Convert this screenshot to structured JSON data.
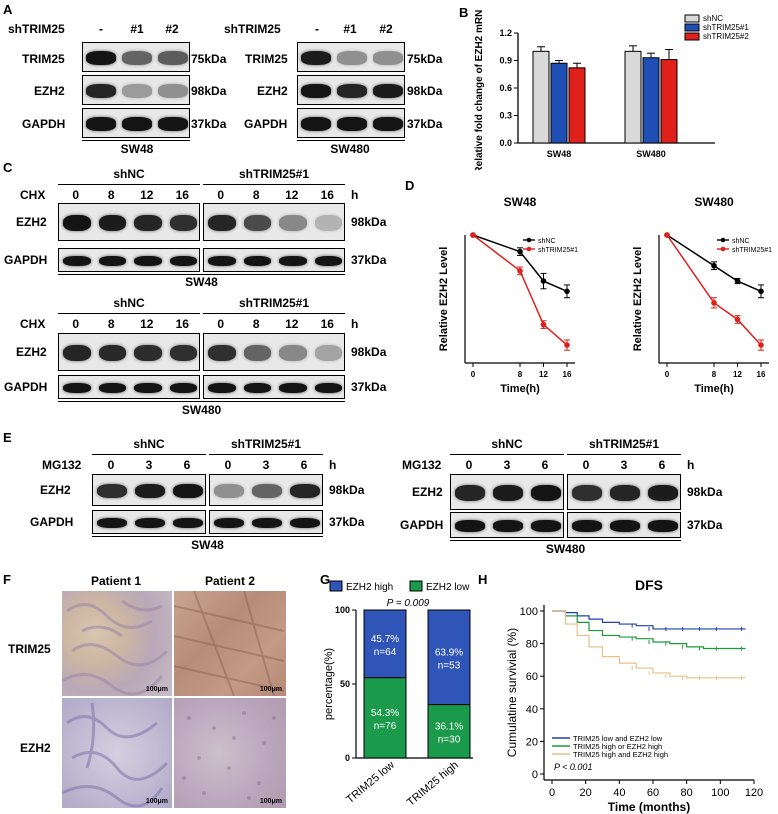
{
  "panels": [
    "A",
    "B",
    "C",
    "D",
    "E",
    "F",
    "G",
    "H"
  ],
  "A": {
    "header_label": "shTRIM25",
    "lanes": [
      "-",
      "#1",
      "#2"
    ],
    "rows": [
      {
        "protein": "TRIM25",
        "size": "75kDa"
      },
      {
        "protein": "EZH2",
        "size": "98kDa"
      },
      {
        "protein": "GAPDH",
        "size": "37kDa"
      }
    ],
    "cells": [
      "SW48",
      "SW480"
    ],
    "band_intensity": {
      "SW48": {
        "TRIM25": [
          1.0,
          0.55,
          0.6
        ],
        "EZH2": [
          0.9,
          0.25,
          0.3
        ],
        "GAPDH": [
          1.0,
          1.0,
          1.0
        ]
      },
      "SW480": {
        "TRIM25": [
          0.95,
          0.3,
          0.3
        ],
        "EZH2": [
          1.0,
          0.9,
          0.95
        ],
        "GAPDH": [
          1.0,
          1.0,
          1.0
        ]
      }
    }
  },
  "B": {
    "chart_data": {
      "type": "bar",
      "ylabel": "Relative fold change of EZH2 mRNA",
      "categories": [
        "SW48",
        "SW480"
      ],
      "ylim": [
        0,
        1.2
      ],
      "yticks": [
        "0.0",
        "0.3",
        "0.6",
        "0.9",
        "1.2"
      ],
      "series": [
        {
          "name": "shNC",
          "values": [
            1.0,
            1.0
          ],
          "errors": [
            0.05,
            0.06
          ],
          "color": "#d9d9d9"
        },
        {
          "name": "shTRIM25#1",
          "values": [
            0.87,
            0.93
          ],
          "errors": [
            0.03,
            0.05
          ],
          "color": "#1f4fb4"
        },
        {
          "name": "shTRIM25#2",
          "values": [
            0.82,
            0.91
          ],
          "errors": [
            0.05,
            0.11
          ],
          "color": "#e0201b"
        }
      ]
    }
  },
  "C": {
    "groups": [
      "shNC",
      "shTRIM25#1"
    ],
    "treatment": "CHX",
    "timepoints": [
      "0",
      "8",
      "12",
      "16"
    ],
    "unit": "h",
    "rows": [
      {
        "protein": "EZH2",
        "size": "98kDa"
      },
      {
        "protein": "GAPDH",
        "size": "37kDa"
      }
    ],
    "cells": [
      "SW48",
      "SW480"
    ]
  },
  "D": {
    "chart_data": [
      {
        "type": "line",
        "title": "SW48",
        "xlabel": "Time(h)",
        "ylabel": "Relative EZH2 Level",
        "x": [
          0,
          8,
          12,
          16
        ],
        "xticks": [
          "0",
          "8",
          "12",
          "16"
        ],
        "ylim": [
          0,
          1.0
        ],
        "series": [
          {
            "name": "shNC",
            "values": [
              1.0,
              0.87,
              0.64,
              0.56
            ],
            "errors": [
              0,
              0.03,
              0.06,
              0.05
            ],
            "color": "#000000"
          },
          {
            "name": "shTRIM25#1",
            "values": [
              1.0,
              0.72,
              0.3,
              0.14
            ],
            "errors": [
              0,
              0.03,
              0.03,
              0.04
            ],
            "color": "#e0201b"
          }
        ]
      },
      {
        "type": "line",
        "title": "SW480",
        "xlabel": "Time(h)",
        "ylabel": "Relative EZH2 Level",
        "x": [
          0,
          8,
          12,
          16
        ],
        "xticks": [
          "0",
          "8",
          "12",
          "16"
        ],
        "ylim": [
          0,
          1.0
        ],
        "series": [
          {
            "name": "shNC",
            "values": [
              1.0,
              0.76,
              0.64,
              0.56
            ],
            "errors": [
              0,
              0.03,
              0.02,
              0.05
            ],
            "color": "#000000"
          },
          {
            "name": "shTRIM25#1",
            "values": [
              1.0,
              0.47,
              0.34,
              0.14
            ],
            "errors": [
              0,
              0.04,
              0.03,
              0.04
            ],
            "color": "#e0201b"
          }
        ]
      }
    ]
  },
  "E": {
    "groups": [
      "shNC",
      "shTRIM25#1"
    ],
    "treatment": "MG132",
    "timepoints": [
      "0",
      "3",
      "6"
    ],
    "unit": "h",
    "rows": [
      {
        "protein": "EZH2",
        "size": "98kDa"
      },
      {
        "protein": "GAPDH",
        "size": "37kDa"
      }
    ],
    "cells": [
      "SW48",
      "SW480"
    ]
  },
  "F": {
    "columns": [
      "Patient 1",
      "Patient 2"
    ],
    "rows": [
      "TRIM25",
      "EZH2"
    ],
    "scale": "100μm"
  },
  "G": {
    "legend": [
      "EZH2 high",
      "EZH2 low"
    ],
    "pvalue": "P = 0.009",
    "chart_data": {
      "type": "bar",
      "stacked": true,
      "ylabel": "percentage(%)",
      "categories": [
        "TRIM25 low",
        "TRIM25 high"
      ],
      "ylim": [
        0,
        100
      ],
      "yticks": [
        "0",
        "50",
        "100"
      ],
      "series": [
        {
          "name": "EZH2 low",
          "values": [
            54.3,
            36.1
          ],
          "labels": [
            "54.3%",
            "36.1%"
          ],
          "counts": [
            "n=76",
            "n=30"
          ],
          "color": "#1a9a4a"
        },
        {
          "name": "EZH2 high",
          "values": [
            45.7,
            63.9
          ],
          "labels": [
            "45.7%",
            "63.9%"
          ],
          "counts": [
            "n=64",
            "n=53"
          ],
          "color": "#2f55b8"
        }
      ]
    }
  },
  "H": {
    "chart_data": {
      "type": "line",
      "title": "DFS",
      "xlabel": "Time (months)",
      "ylabel": "Cumulatine survivial (%)",
      "xlim": [
        0,
        120
      ],
      "ylim": [
        0,
        100
      ],
      "xticks": [
        "0",
        "20",
        "40",
        "60",
        "80",
        "100",
        "120"
      ],
      "yticks": [
        "0",
        "20",
        "40",
        "60",
        "80",
        "100"
      ],
      "pvalue": "P < 0.001",
      "series": [
        {
          "name": "TRIM25 low and EZH2 low",
          "color": "#1f3fb0",
          "x": [
            0,
            8,
            15,
            22,
            30,
            40,
            50,
            60,
            70,
            80,
            90,
            100,
            115
          ],
          "y": [
            100,
            99,
            97,
            95,
            93,
            92,
            91,
            89,
            89,
            89,
            89,
            89,
            89
          ]
        },
        {
          "name": "TRIM25 high or EZH2 high",
          "color": "#1a9a3a",
          "x": [
            0,
            8,
            15,
            22,
            30,
            40,
            50,
            60,
            70,
            80,
            90,
            100,
            115
          ],
          "y": [
            100,
            97,
            93,
            88,
            85,
            84,
            83,
            81,
            80,
            78,
            77,
            77,
            77
          ]
        },
        {
          "name": "TRIM25 high and EZH2 high",
          "color": "#e8c088",
          "x": [
            0,
            8,
            15,
            22,
            30,
            40,
            50,
            60,
            70,
            80,
            90,
            100,
            115
          ],
          "y": [
            100,
            92,
            85,
            78,
            72,
            68,
            65,
            62,
            60,
            59,
            59,
            59,
            59
          ]
        }
      ]
    }
  }
}
